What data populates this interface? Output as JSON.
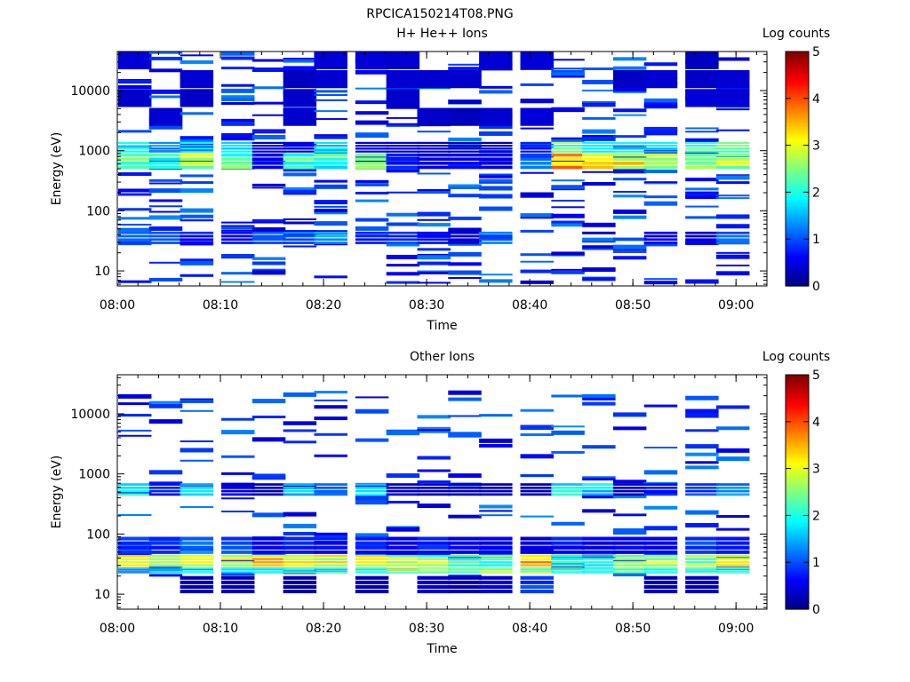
{
  "figure_title": "RPCICA150214T08.PNG",
  "chart_data": [
    {
      "type": "heatmap",
      "title": "H+ He++ Ions",
      "xlabel": "Time",
      "ylabel": "Energy (eV)",
      "colorbar_label": "Log counts",
      "colorbar_ticks": [
        "0",
        "1",
        "2",
        "3",
        "4",
        "5"
      ],
      "x_ticks": [
        "08:00",
        "08:10",
        "08:20",
        "08:30",
        "08:40",
        "08:50",
        "09:00"
      ],
      "y_ticks": [
        "10",
        "100",
        "1000",
        "10000"
      ],
      "x_range": [
        "08:00",
        "09:03"
      ],
      "y_range_log10": [
        0.75,
        4.65
      ],
      "zrange": [
        0,
        5
      ],
      "grid": false,
      "colormap": "jet",
      "time_bins": [
        "08:00",
        "08:03",
        "08:06",
        "08:10",
        "08:13",
        "08:16",
        "08:19",
        "08:23",
        "08:26",
        "08:29",
        "08:32",
        "08:35",
        "08:39",
        "08:42",
        "08:45",
        "08:48",
        "08:51",
        "08:55",
        "08:58"
      ],
      "bands": [
        {
          "e_low": 480,
          "e_high": 900,
          "intensity": [
            2.5,
            2.2,
            3.0,
            2.4,
            0.6,
            2.4,
            2.2,
            3.2,
            0.8,
            0.5,
            0.6,
            0.6,
            1.2,
            4.0,
            3.2,
            3.4,
            3.2,
            3.0,
            2.8
          ]
        },
        {
          "e_low": 900,
          "e_high": 1400,
          "intensity": [
            2.0,
            1.5,
            1.8,
            1.8,
            0.5,
            0.5,
            1.8,
            0.6,
            0.5,
            0.4,
            0.3,
            0.4,
            0.8,
            2.6,
            2.0,
            1.8,
            1.8,
            2.4,
            2.5
          ]
        },
        {
          "e_low": 27,
          "e_high": 45,
          "intensity": [
            1.2,
            1.3,
            0.8,
            0.7,
            1.0,
            1.2,
            1.4,
            0.8,
            1.0,
            0.7,
            0.4,
            1.2,
            0,
            0,
            0,
            0,
            0.6,
            0.5,
            1.2
          ]
        },
        {
          "e_low": 2500,
          "e_high": 45000,
          "intensity": [
            0.4,
            0.4,
            0.4,
            0.4,
            0.3,
            0.4,
            0.4,
            0.4,
            0.4,
            0.4,
            0.4,
            0.4,
            0.4,
            0.4,
            0.4,
            0.4,
            0.4,
            0.4,
            0.4
          ]
        }
      ]
    },
    {
      "type": "heatmap",
      "title": "Other Ions",
      "xlabel": "Time",
      "ylabel": "Energy (eV)",
      "colorbar_label": "Log counts",
      "colorbar_ticks": [
        "0",
        "1",
        "2",
        "3",
        "4",
        "5"
      ],
      "x_ticks": [
        "08:00",
        "08:10",
        "08:20",
        "08:30",
        "08:40",
        "08:50",
        "09:00"
      ],
      "y_ticks": [
        "10",
        "100",
        "1000",
        "10000"
      ],
      "x_range": [
        "08:00",
        "09:03"
      ],
      "y_range_log10": [
        0.75,
        4.65
      ],
      "zrange": [
        0,
        5
      ],
      "grid": false,
      "colormap": "jet",
      "time_bins": [
        "08:00",
        "08:03",
        "08:06",
        "08:10",
        "08:13",
        "08:16",
        "08:19",
        "08:23",
        "08:26",
        "08:29",
        "08:32",
        "08:35",
        "08:39",
        "08:42",
        "08:45",
        "08:48",
        "08:51",
        "08:55",
        "08:58"
      ],
      "bands": [
        {
          "e_low": 28,
          "e_high": 45,
          "intensity": [
            3.2,
            3.0,
            3.2,
            3.2,
            3.5,
            3.6,
            3.2,
            3.4,
            3.0,
            2.8,
            2.2,
            2.4,
            3.6,
            2.2,
            2.0,
            2.6,
            3.0,
            2.8,
            3.4
          ]
        },
        {
          "e_low": 22,
          "e_high": 28,
          "intensity": [
            1.5,
            1.8,
            1.8,
            1.8,
            2.0,
            2.2,
            2.0,
            2.2,
            2.8,
            3.0,
            2.8,
            2.6,
            2.6,
            2.4,
            2.2,
            2.4,
            2.0,
            2.2,
            2.0
          ]
        },
        {
          "e_low": 45,
          "e_high": 90,
          "intensity": [
            1.0,
            0.8,
            1.4,
            1.0,
            0.6,
            0.8,
            0.8,
            0.8,
            0.6,
            0.8,
            0.6,
            0.6,
            0.5,
            0.8,
            0.6,
            0.6,
            0.6,
            1.0,
            0.8
          ]
        },
        {
          "e_low": 420,
          "e_high": 700,
          "intensity": [
            2.2,
            0.8,
            1.8,
            0.5,
            0.3,
            1.8,
            1.2,
            2.0,
            0.4,
            0.3,
            0.3,
            0.3,
            0.3,
            2.0,
            1.8,
            0.3,
            0.8,
            1.0,
            1.4
          ]
        },
        {
          "e_low": 10,
          "e_high": 20,
          "intensity": [
            0,
            0,
            0.3,
            0.3,
            0,
            0.2,
            0,
            0.3,
            0,
            0.4,
            0.3,
            0.5,
            1.0,
            0,
            0,
            0,
            0.3,
            0.3,
            0
          ]
        }
      ]
    }
  ]
}
